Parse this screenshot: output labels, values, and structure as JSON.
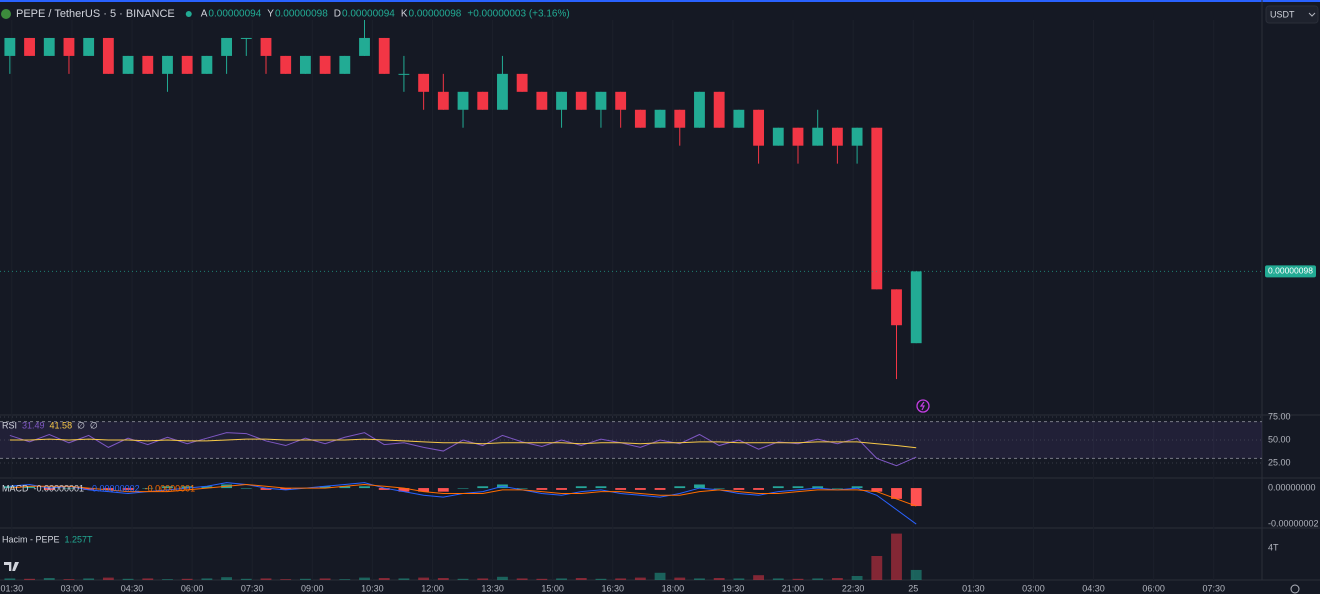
{
  "header": {
    "symbol": "PEPE / TetherUS · 5 · BINANCE",
    "ohlc": [
      {
        "label": "A",
        "value": "0.00000094"
      },
      {
        "label": "Y",
        "value": "0.00000098"
      },
      {
        "label": "D",
        "value": "0.00000094"
      },
      {
        "label": "K",
        "value": "0.00000098"
      }
    ],
    "change": "+0.00000003 (+3.16%)"
  },
  "currency": "USDT",
  "chart_data": [
    {
      "type": "candlestick",
      "open": [
        1.1e-06,
        1.11e-06,
        1.1e-06,
        1.11e-06,
        1.1e-06,
        1.11e-06,
        1.09e-06,
        1.1e-06,
        1.09e-06,
        1.1e-06,
        1.09e-06,
        1.1e-06,
        1.11e-06,
        1.11e-06,
        1.1e-06,
        1.09e-06,
        1.1e-06,
        1.09e-06,
        1.1e-06,
        1.11e-06,
        1.09e-06,
        1.09e-06,
        1.08e-06,
        1.07e-06,
        1.08e-06,
        1.07e-06,
        1.09e-06,
        1.08e-06,
        1.07e-06,
        1.08e-06,
        1.07e-06,
        1.08e-06,
        1.07e-06,
        1.06e-06,
        1.07e-06,
        1.06e-06,
        1.08e-06,
        1.06e-06,
        1.07e-06,
        1.05e-06,
        1.06e-06,
        1.05e-06,
        1.06e-06,
        1.05e-06,
        1.06e-06,
        9.7e-07,
        9.4e-07
      ],
      "high": [
        1.11e-06,
        1.11e-06,
        1.11e-06,
        1.11e-06,
        1.11e-06,
        1.11e-06,
        1.1e-06,
        1.1e-06,
        1.1e-06,
        1.1e-06,
        1.1e-06,
        1.11e-06,
        1.11e-06,
        1.11e-06,
        1.1e-06,
        1.1e-06,
        1.1e-06,
        1.1e-06,
        1.12e-06,
        1.11e-06,
        1.1e-06,
        1.09e-06,
        1.09e-06,
        1.08e-06,
        1.08e-06,
        1.1e-06,
        1.09e-06,
        1.08e-06,
        1.08e-06,
        1.08e-06,
        1.08e-06,
        1.08e-06,
        1.07e-06,
        1.07e-06,
        1.07e-06,
        1.08e-06,
        1.08e-06,
        1.07e-06,
        1.07e-06,
        1.06e-06,
        1.06e-06,
        1.07e-06,
        1.06e-06,
        1.06e-06,
        1.06e-06,
        9.7e-07,
        9.8e-07
      ],
      "low": [
        1.09e-06,
        1.1e-06,
        1.1e-06,
        1.09e-06,
        1.1e-06,
        1.09e-06,
        1.09e-06,
        1.09e-06,
        1.08e-06,
        1.09e-06,
        1.09e-06,
        1.09e-06,
        1.1e-06,
        1.09e-06,
        1.09e-06,
        1.09e-06,
        1.09e-06,
        1.09e-06,
        1.1e-06,
        1.09e-06,
        1.08e-06,
        1.07e-06,
        1.07e-06,
        1.06e-06,
        1.07e-06,
        1.07e-06,
        1.08e-06,
        1.07e-06,
        1.06e-06,
        1.07e-06,
        1.06e-06,
        1.06e-06,
        1.06e-06,
        1.06e-06,
        1.05e-06,
        1.06e-06,
        1.06e-06,
        1.06e-06,
        1.04e-06,
        1.05e-06,
        1.04e-06,
        1.05e-06,
        1.04e-06,
        1.04e-06,
        9.7e-07,
        9.2e-07,
        9.4e-07
      ],
      "close": [
        1.11e-06,
        1.1e-06,
        1.11e-06,
        1.1e-06,
        1.11e-06,
        1.09e-06,
        1.1e-06,
        1.09e-06,
        1.1e-06,
        1.09e-06,
        1.1e-06,
        1.11e-06,
        1.11e-06,
        1.1e-06,
        1.09e-06,
        1.1e-06,
        1.09e-06,
        1.1e-06,
        1.11e-06,
        1.09e-06,
        1.09e-06,
        1.08e-06,
        1.07e-06,
        1.08e-06,
        1.07e-06,
        1.09e-06,
        1.08e-06,
        1.07e-06,
        1.08e-06,
        1.07e-06,
        1.08e-06,
        1.07e-06,
        1.06e-06,
        1.07e-06,
        1.06e-06,
        1.08e-06,
        1.06e-06,
        1.07e-06,
        1.05e-06,
        1.06e-06,
        1.05e-06,
        1.06e-06,
        1.05e-06,
        1.06e-06,
        9.7e-07,
        9.5e-07,
        9.8e-07
      ],
      "up_color": "#22ab94",
      "down_color": "#f23645",
      "xlim": [
        -0.5,
        63.55
      ],
      "xticks": [
        {
          "value": 0.1,
          "label": "01:30"
        },
        {
          "value": 3.15,
          "label": "03:00"
        },
        {
          "value": 6.2,
          "label": "04:30"
        },
        {
          "value": 9.25,
          "label": "06:00"
        },
        {
          "value": 12.3,
          "label": "07:30"
        },
        {
          "value": 15.35,
          "label": "09:00"
        },
        {
          "value": 18.4,
          "label": "10:30"
        },
        {
          "value": 21.45,
          "label": "12:00"
        },
        {
          "value": 24.5,
          "label": "13:30"
        },
        {
          "value": 27.55,
          "label": "15:00"
        },
        {
          "value": 30.6,
          "label": "16:30"
        },
        {
          "value": 33.65,
          "label": "18:00"
        },
        {
          "value": 36.7,
          "label": "19:30"
        },
        {
          "value": 39.75,
          "label": "21:00"
        },
        {
          "value": 42.8,
          "label": "22:30"
        },
        {
          "value": 45.85,
          "label": "25"
        },
        {
          "value": 48.9,
          "label": "01:30"
        },
        {
          "value": 51.95,
          "label": "03:00"
        },
        {
          "value": 55.0,
          "label": "04:30"
        },
        {
          "value": 58.05,
          "label": "06:00"
        },
        {
          "value": 61.1,
          "label": "07:30"
        }
      ],
      "ylim": [
        9e-07,
        1.12e-06
      ],
      "last_price": {
        "value": 9.8e-07,
        "label": "0.00000098"
      }
    },
    {
      "type": "line",
      "title": "RSI",
      "legend_values": [
        "31.49",
        "41.58",
        "∅",
        "∅"
      ],
      "legend_colors": [
        "#7e57c2",
        "#f7c948",
        "#d1d4dc",
        "#d1d4dc"
      ],
      "series": [
        {
          "color": "#7e57c2",
          "values": [
            55,
            48,
            56,
            47,
            55,
            42,
            52,
            45,
            53,
            46,
            52,
            58,
            57,
            49,
            44,
            52,
            46,
            53,
            58,
            45,
            47,
            42,
            38,
            50,
            44,
            55,
            48,
            43,
            50,
            44,
            51,
            47,
            42,
            50,
            46,
            56,
            44,
            50,
            40,
            48,
            46,
            51,
            46,
            52,
            30,
            22,
            31.49
          ]
        },
        {
          "color": "#f7c948",
          "values": [
            50,
            50,
            51,
            50,
            51,
            50,
            50,
            49,
            50,
            49,
            49,
            50,
            51,
            51,
            50,
            50,
            50,
            50,
            51,
            50,
            49,
            48,
            47,
            47,
            46,
            47,
            47,
            47,
            47,
            46,
            47,
            47,
            46,
            47,
            47,
            48,
            48,
            47,
            47,
            47,
            47,
            48,
            48,
            48,
            46,
            44,
            41.58
          ]
        }
      ],
      "band": [
        30,
        70
      ],
      "band_color": "#7e57c2",
      "ylim": [
        8.7,
        77.2
      ],
      "yticks": [
        {
          "value": 75,
          "label": "75.00"
        },
        {
          "value": 50,
          "label": "50.00"
        },
        {
          "value": 25,
          "label": "25.00"
        }
      ]
    },
    {
      "type": "macd",
      "title": "MACD",
      "legend_values": [
        "-0.00000001",
        "-0.00000002",
        "-0.00000001"
      ],
      "legend_colors": [
        "#d1d4dc",
        "#2962ff",
        "#ff6d00"
      ],
      "histogram": [
        1e-09,
        1e-09,
        -1e-09,
        0,
        -1e-09,
        -1e-09,
        -1e-09,
        0,
        1e-09,
        1e-09,
        1e-09,
        2e-09,
        0,
        -1e-09,
        -1e-09,
        0,
        1e-09,
        1e-09,
        1e-09,
        -1e-09,
        -2e-09,
        -2e-09,
        -2e-09,
        0,
        1e-09,
        2e-09,
        0,
        -1e-09,
        -1e-09,
        1e-09,
        1e-09,
        -1e-09,
        -1e-09,
        -1e-09,
        1e-09,
        2e-09,
        0,
        -1e-09,
        -1e-09,
        1e-09,
        1e-09,
        1e-09,
        0,
        1e-09,
        -2e-09,
        -6e-09,
        -1e-08
      ],
      "series": [
        {
          "color": "#2962ff",
          "values": [
            1e-09,
            2e-09,
            0,
            1e-09,
            -1e-09,
            -2e-09,
            -3e-09,
            -2e-09,
            -1e-09,
            0,
            1e-09,
            3e-09,
            2e-09,
            0,
            -1e-09,
            0,
            1e-09,
            2e-09,
            3e-09,
            0,
            -2e-09,
            -4e-09,
            -5e-09,
            -3e-09,
            -2e-09,
            1e-09,
            -1e-09,
            -3e-09,
            -4e-09,
            -2e-09,
            -1e-09,
            -3e-09,
            -4e-09,
            -5e-09,
            -3e-09,
            0,
            -1e-09,
            -3e-09,
            -4e-09,
            -2e-09,
            -1e-09,
            0,
            -1e-09,
            0,
            -4e-09,
            -1.2e-08,
            -2e-08
          ]
        },
        {
          "color": "#ff6d00",
          "values": [
            0,
            1e-09,
            1e-09,
            1e-09,
            0,
            -1e-09,
            -2e-09,
            -2e-09,
            -2e-09,
            -1e-09,
            0,
            1e-09,
            2e-09,
            1e-09,
            0,
            0,
            0,
            1e-09,
            2e-09,
            1e-09,
            0,
            -2e-09,
            -3e-09,
            -3e-09,
            -3e-09,
            -1e-09,
            -1e-09,
            -2e-09,
            -3e-09,
            -3e-09,
            -2e-09,
            -2e-09,
            -3e-09,
            -4e-09,
            -4e-09,
            -2e-09,
            -1e-09,
            -2e-09,
            -3e-09,
            -3e-09,
            -2e-09,
            -1e-09,
            -1e-09,
            -1e-09,
            -2e-09,
            -6e-09,
            -1e-08
          ]
        }
      ],
      "up_color": "#26a69a",
      "down_color": "#ff5252",
      "ylim": [
        -2.22e-08,
        5.6e-09
      ],
      "yticks": [
        {
          "value": 0,
          "label": "0.00000000"
        },
        {
          "value": -2e-08,
          "label": "-0.00000002"
        }
      ]
    },
    {
      "type": "volume",
      "title": "Hacim - PEPE",
      "legend_values": [
        "1.257T"
      ],
      "legend_colors": [
        "#22ab94"
      ],
      "values": [
        200000000000.0,
        150000000000.0,
        250000000000.0,
        100000000000.0,
        200000000000.0,
        300000000000.0,
        150000000000.0,
        200000000000.0,
        100000000000.0,
        150000000000.0,
        200000000000.0,
        350000000000.0,
        150000000000.0,
        200000000000.0,
        100000000000.0,
        150000000000.0,
        200000000000.0,
        100000000000.0,
        300000000000.0,
        250000000000.0,
        200000000000.0,
        300000000000.0,
        250000000000.0,
        150000000000.0,
        200000000000.0,
        400000000000.0,
        200000000000.0,
        150000000000.0,
        200000000000.0,
        250000000000.0,
        150000000000.0,
        200000000000.0,
        300000000000.0,
        900000000000.0,
        300000000000.0,
        200000000000.0,
        250000000000.0,
        200000000000.0,
        600000000000.0,
        200000000000.0,
        150000000000.0,
        200000000000.0,
        250000000000.0,
        500000000000.0,
        3000000000000.0,
        5800000000000.0,
        1257000000000.0
      ],
      "ylim": [
        0,
        6500000000000
      ],
      "yticks": [
        {
          "value": 4000000000000,
          "label": "4T"
        }
      ]
    }
  ]
}
